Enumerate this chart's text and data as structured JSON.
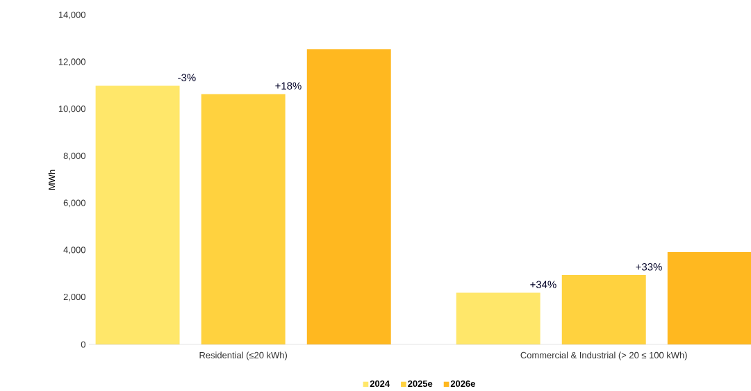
{
  "chart_data": {
    "type": "bar",
    "ylabel": "MWh",
    "categories": [
      "Residential (≤20 kWh)",
      "Commercial & Industrial (> 20 ≤ 100 kWh)"
    ],
    "series": [
      {
        "name": "2024",
        "color": "#ffe76a",
        "values": [
          11000,
          2200
        ]
      },
      {
        "name": "2025e",
        "color": "#ffd23f",
        "values": [
          10650,
          2950
        ]
      },
      {
        "name": "2026e",
        "color": "#ffb820",
        "values": [
          12550,
          3930
        ]
      }
    ],
    "ylim": [
      0,
      14000
    ],
    "yticks": [
      0,
      {
        "value": 2000,
        "label": "2,000"
      },
      {
        "value": 4000,
        "label": "4,000"
      },
      {
        "value": 6000,
        "label": "6,000"
      },
      {
        "value": 8000,
        "label": "8,000"
      },
      {
        "value": 10000,
        "label": "10,000"
      },
      {
        "value": 12000,
        "label": "12,000"
      },
      {
        "value": 14000,
        "label": "14,000"
      }
    ],
    "annotations": [
      "-3%",
      "+18%",
      "+34%",
      "+33%"
    ],
    "legend": "bottom",
    "grid": false
  }
}
